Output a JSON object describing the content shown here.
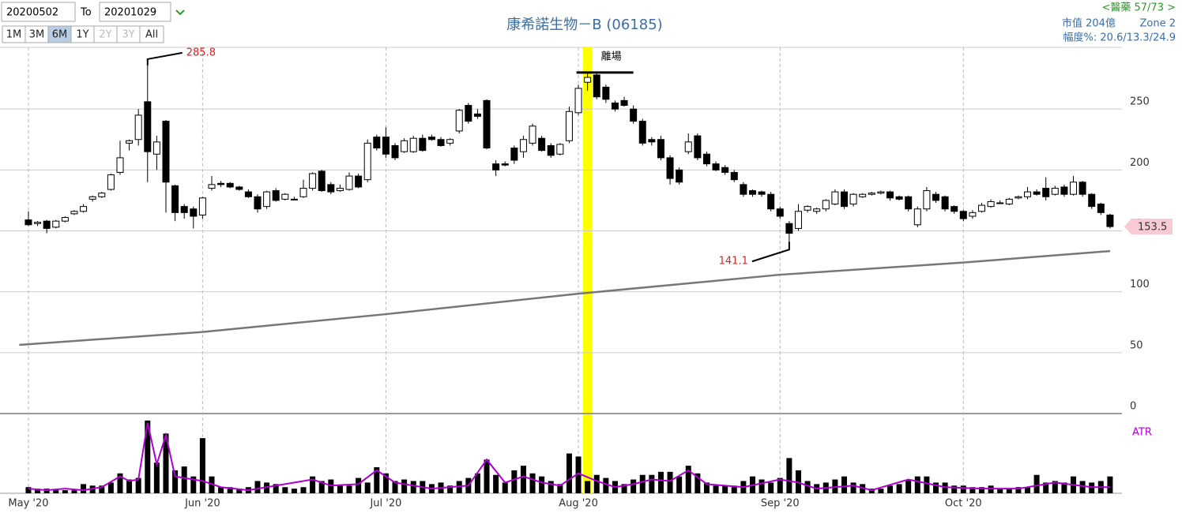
{
  "controls": {
    "from_date": "20200502",
    "to_label": "To",
    "to_date": "20201029",
    "ranges": [
      "1M",
      "3M",
      "6M",
      "1Y",
      "2Y",
      "3Y",
      "All"
    ],
    "selected_range": "6M",
    "disabled_ranges": [
      "2Y",
      "3Y"
    ]
  },
  "info": {
    "sector": "<醫藥 57/73 >",
    "market_cap": "市值 204億",
    "zone": "Zone 2",
    "range_pct": "幅度%: 20.6/13.3/24.9"
  },
  "chart_data": {
    "type": "candlestick",
    "title": "康希諾生物－B (06185)",
    "up_color": "#ffffff",
    "down_color": "#000000",
    "outline_color": "#000000",
    "xlim": [
      -3.1,
      119.3
    ],
    "ylim": [
      0,
      300
    ],
    "yticks": [
      0,
      50,
      100,
      150,
      200,
      250
    ],
    "grid": true,
    "xticks": [
      {
        "value": 0,
        "label": "May '20"
      },
      {
        "value": 19,
        "label": "Jun '20"
      },
      {
        "value": 39,
        "label": "Jul '20"
      },
      {
        "value": 60,
        "label": "Aug '20"
      },
      {
        "value": 82,
        "label": "Sep '20"
      },
      {
        "value": 102,
        "label": "Oct '20"
      }
    ],
    "candles": [
      [
        159,
        166,
        154,
        155
      ],
      [
        156,
        158,
        154,
        157
      ],
      [
        158,
        159,
        148,
        152
      ],
      [
        153,
        159,
        152,
        158
      ],
      [
        158,
        162,
        157,
        161
      ],
      [
        164,
        167,
        163,
        166
      ],
      [
        166,
        172,
        165,
        170
      ],
      [
        176,
        179,
        174,
        178
      ],
      [
        178,
        182,
        177,
        181
      ],
      [
        184,
        197,
        183,
        196
      ],
      [
        198,
        224,
        196,
        210
      ],
      [
        222,
        225,
        216,
        224
      ],
      [
        225,
        250,
        220,
        245
      ],
      [
        256,
        285.8,
        190,
        215
      ],
      [
        213,
        228,
        200,
        223
      ],
      [
        240,
        241,
        165,
        190
      ],
      [
        187,
        188,
        158,
        165
      ],
      [
        170,
        172,
        160,
        165
      ],
      [
        168,
        170,
        152,
        162
      ],
      [
        163,
        178,
        160,
        177
      ],
      [
        185,
        195,
        183,
        188
      ],
      [
        189,
        191,
        186,
        188
      ],
      [
        189,
        190,
        185,
        186
      ],
      [
        186,
        187,
        183,
        184
      ],
      [
        182,
        184,
        177,
        178
      ],
      [
        178,
        180,
        165,
        168
      ],
      [
        170,
        183,
        168,
        182
      ],
      [
        183,
        185,
        174,
        175
      ],
      [
        176,
        181,
        175,
        180
      ],
      [
        176,
        178,
        175,
        176
      ],
      [
        178,
        192,
        177,
        185
      ],
      [
        185,
        198,
        183,
        197
      ],
      [
        199,
        200,
        182,
        183
      ],
      [
        188,
        190,
        180,
        182
      ],
      [
        183,
        188,
        182,
        185
      ],
      [
        184,
        198,
        183,
        195
      ],
      [
        195,
        197,
        185,
        186
      ],
      [
        192,
        225,
        190,
        222
      ],
      [
        227,
        229,
        216,
        218
      ],
      [
        227,
        235,
        210,
        213
      ],
      [
        220,
        222,
        208,
        210
      ],
      [
        215,
        226,
        214,
        224
      ],
      [
        215,
        228,
        214,
        226
      ],
      [
        226,
        229,
        215,
        216
      ],
      [
        227,
        229,
        224,
        225
      ],
      [
        225,
        227,
        219,
        220
      ],
      [
        222,
        226,
        220,
        225
      ],
      [
        232,
        250,
        230,
        249
      ],
      [
        253,
        255,
        238,
        240
      ],
      [
        246,
        250,
        242,
        244
      ],
      [
        257,
        258,
        217,
        218
      ],
      [
        205,
        208,
        195,
        200
      ],
      [
        205,
        207,
        203,
        204
      ],
      [
        218,
        220,
        205,
        208
      ],
      [
        215,
        228,
        210,
        225
      ],
      [
        222,
        238,
        220,
        236
      ],
      [
        226,
        228,
        215,
        216
      ],
      [
        220,
        222,
        210,
        212
      ],
      [
        213,
        222,
        212,
        221
      ],
      [
        224,
        252,
        222,
        248
      ],
      [
        247,
        270,
        245,
        267
      ],
      [
        272,
        280,
        265,
        276
      ],
      [
        278,
        279,
        258,
        260
      ],
      [
        268,
        270,
        255,
        258
      ],
      [
        255,
        257,
        248,
        250
      ],
      [
        257,
        260,
        252,
        253
      ],
      [
        250,
        253,
        238,
        240
      ],
      [
        240,
        242,
        220,
        222
      ],
      [
        225,
        227,
        220,
        223
      ],
      [
        225,
        228,
        208,
        210
      ],
      [
        210,
        212,
        188,
        193
      ],
      [
        200,
        202,
        188,
        190
      ],
      [
        215,
        230,
        213,
        223
      ],
      [
        228,
        230,
        208,
        210
      ],
      [
        213,
        215,
        203,
        205
      ],
      [
        205,
        207,
        199,
        200
      ],
      [
        202,
        204,
        196,
        198
      ],
      [
        198,
        200,
        190,
        192
      ],
      [
        188,
        190,
        178,
        180
      ],
      [
        183,
        184,
        178,
        180
      ],
      [
        182,
        183,
        178,
        180
      ],
      [
        180,
        182,
        166,
        168
      ],
      [
        168,
        170,
        160,
        162
      ],
      [
        156,
        158,
        141.1,
        148
      ],
      [
        152,
        172,
        150,
        166
      ],
      [
        167,
        171,
        165,
        170
      ],
      [
        166,
        169,
        164,
        168
      ],
      [
        168,
        176,
        166,
        175
      ],
      [
        172,
        184,
        171,
        182
      ],
      [
        182,
        184,
        168,
        170
      ],
      [
        172,
        181,
        170,
        180
      ],
      [
        178,
        181,
        177,
        180
      ],
      [
        180,
        182,
        179,
        181
      ],
      [
        181,
        183,
        180,
        182
      ],
      [
        182,
        183,
        175,
        177
      ],
      [
        178,
        179,
        175,
        176
      ],
      [
        178,
        179,
        166,
        168
      ],
      [
        155,
        170,
        153,
        168
      ],
      [
        168,
        186,
        166,
        183
      ],
      [
        180,
        182,
        173,
        175
      ],
      [
        178,
        179,
        166,
        168
      ],
      [
        170,
        171,
        164,
        166
      ],
      [
        166,
        167,
        158,
        160
      ],
      [
        162,
        167,
        160,
        165
      ],
      [
        166,
        173,
        165,
        171
      ],
      [
        170,
        176,
        169,
        174
      ],
      [
        173,
        175,
        172,
        173
      ],
      [
        172,
        177,
        171,
        176
      ],
      [
        177,
        179,
        176,
        178
      ],
      [
        178,
        186,
        176,
        182
      ],
      [
        182,
        184,
        179,
        180
      ],
      [
        185,
        194,
        175,
        178
      ],
      [
        180,
        187,
        179,
        185
      ],
      [
        186,
        188,
        178,
        180
      ],
      [
        180,
        195,
        179,
        190
      ],
      [
        190,
        191,
        178,
        180
      ],
      [
        180,
        181,
        168,
        170
      ],
      [
        172,
        173,
        163,
        165
      ],
      [
        163,
        164,
        152,
        153.5
      ]
    ],
    "high_label_index": 13,
    "low_label_index": 83,
    "ma": {
      "color": "#777777",
      "x": [
        -1,
        19,
        39,
        60,
        82,
        102,
        118
      ],
      "values": [
        56.4,
        67,
        81.6,
        98.4,
        114,
        124,
        133.4
      ]
    },
    "highlight": {
      "x": 61,
      "color": "#ffff00",
      "label": "離場"
    },
    "price_tag_color": "#f9c9d4",
    "volume": {
      "color": "#000000",
      "ylim": [
        0,
        100
      ],
      "values": [
        8,
        6,
        6,
        5,
        4,
        4,
        12,
        10,
        10,
        14,
        26,
        18,
        20,
        95,
        40,
        78,
        30,
        35,
        22,
        72,
        22,
        8,
        8,
        6,
        8,
        16,
        14,
        12,
        8,
        6,
        8,
        22,
        16,
        18,
        10,
        10,
        20,
        14,
        34,
        26,
        16,
        18,
        16,
        16,
        12,
        14,
        10,
        16,
        20,
        26,
        44,
        24,
        14,
        30,
        36,
        26,
        22,
        16,
        12,
        52,
        48,
        16,
        24,
        20,
        16,
        12,
        18,
        24,
        24,
        28,
        28,
        22,
        36,
        26,
        14,
        10,
        10,
        10,
        16,
        22,
        18,
        14,
        20,
        46,
        30,
        16,
        12,
        14,
        18,
        22,
        14,
        12,
        6,
        6,
        10,
        12,
        18,
        22,
        22,
        14,
        14,
        10,
        10,
        8,
        8,
        10,
        6,
        6,
        8,
        8,
        24,
        14,
        16,
        14,
        22,
        16,
        14,
        16,
        22
      ]
    },
    "atr": {
      "name": "ATR",
      "color": "#b000d0",
      "x": [
        0,
        2,
        4,
        6,
        8,
        10,
        11,
        12,
        13,
        14,
        15,
        16,
        17,
        18,
        19,
        21,
        24,
        28,
        31,
        33,
        36,
        38,
        40,
        44,
        48,
        50,
        52,
        54,
        56,
        58,
        60,
        62,
        64,
        66,
        68,
        70,
        72,
        74,
        78,
        82,
        84,
        86,
        90,
        92,
        96,
        100,
        104,
        108,
        112,
        116,
        118
      ],
      "values": [
        6,
        4,
        6,
        4,
        8,
        22,
        16,
        18,
        92,
        38,
        76,
        22,
        20,
        18,
        16,
        8,
        4,
        12,
        18,
        10,
        12,
        30,
        14,
        6,
        10,
        44,
        14,
        22,
        14,
        10,
        26,
        16,
        8,
        12,
        18,
        16,
        30,
        12,
        8,
        18,
        14,
        6,
        10,
        4,
        18,
        8,
        6,
        6,
        14,
        8,
        8
      ]
    }
  }
}
